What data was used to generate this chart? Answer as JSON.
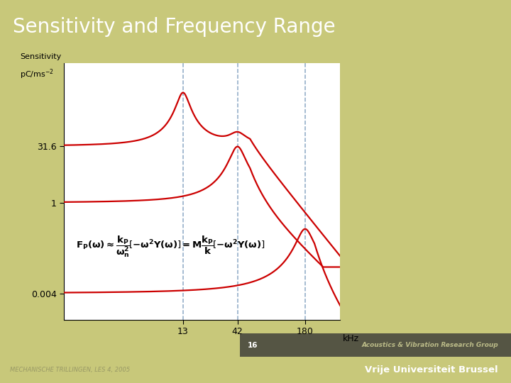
{
  "title": "Sensitivity and Frequency Range",
  "title_bg": "#666655",
  "title_color": "#ffffff",
  "title_fontsize": 20,
  "plot_bg": "#ffffff",
  "slide_bg": "#c8c87a",
  "ylabel_line1": "Sensitivity",
  "ylabel_line2": "pC/ms⁻²",
  "xlabel": "kHz",
  "yticks": [
    0.004,
    1,
    31.6
  ],
  "ytick_labels": [
    "0.004",
    "1",
    "31.6"
  ],
  "xticks": [
    13,
    42,
    180
  ],
  "xtick_labels": [
    "13",
    "42",
    "180"
  ],
  "curve_color": "#cc0000",
  "dashed_color": "#7799bb",
  "footer_bg": "#8a9a1a",
  "footer_dark_bg": "#555544",
  "footer_text_left": "MECHANISCHE TRILLINGEN, LES 4, 2005",
  "footer_text_page": "16",
  "footer_text_right": "Acoustics & Vibration Research Group",
  "footer_text_univ": "Vrije Universiteit Brussel",
  "formula_bg": "#f5f5c0",
  "formula_border": "#aaaaaa",
  "formula_shadow": "#999988"
}
